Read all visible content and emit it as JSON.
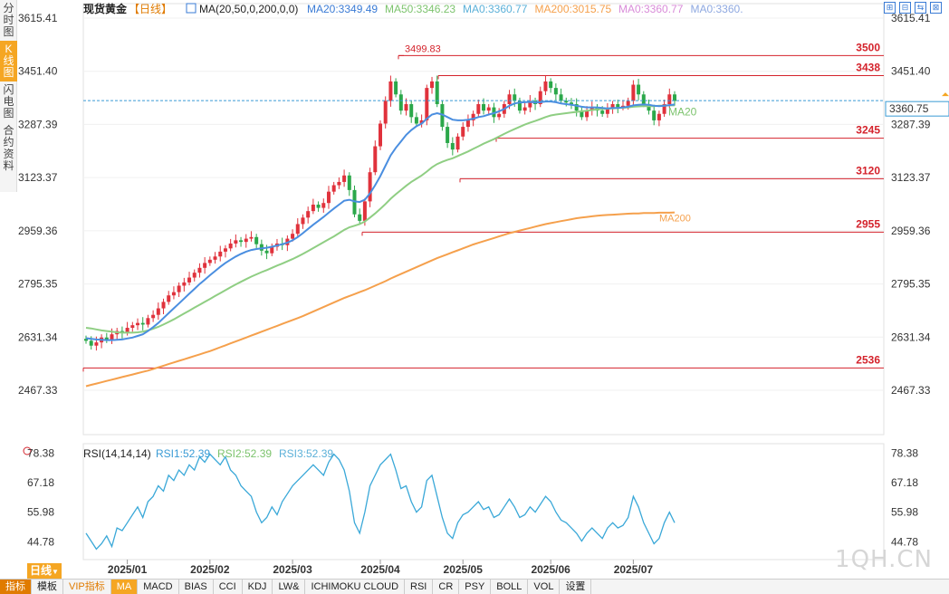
{
  "sidebar": [
    {
      "label": "分时图"
    },
    {
      "label": "K线图",
      "active": true
    },
    {
      "label": "闪电图"
    },
    {
      "label": "合约资料"
    }
  ],
  "header": {
    "title": "现货黄金",
    "period": "【日线】",
    "ma_params": "MA(20,50,0,200,0,0)",
    "ma_items": [
      {
        "text": "MA20:3349.49",
        "color": "#3a7bd5"
      },
      {
        "text": "MA50:3346.23",
        "color": "#7cc36d"
      },
      {
        "text": "MA0:3360.77",
        "color": "#5bb0d8"
      },
      {
        "text": "MA200:3015.75",
        "color": "#f5a04c"
      },
      {
        "text": "MA0:3360.77",
        "color": "#d98cd9"
      },
      {
        "text": "MA0:3360.",
        "color": "#8ea8e0"
      }
    ]
  },
  "toolbar_icons": [
    "⊞",
    "⊟",
    "⇆",
    "⊠"
  ],
  "rsi_header": {
    "params": "RSI(14,14,14)",
    "items": [
      {
        "text": "RSI1:52.39",
        "color": "#3a9bd5"
      },
      {
        "text": "RSI2:52.39",
        "color": "#7cc36d"
      },
      {
        "text": "RSI3:52.39",
        "color": "#5bb0d8"
      }
    ]
  },
  "bottom_tabs": [
    "指标",
    "模板",
    "VIP指标",
    "MA",
    "MACD",
    "BIAS",
    "CCI",
    "KDJ",
    "LW&",
    "ICHIMOKU CLOUD",
    "RSI",
    "CR",
    "PSY",
    "BOLL",
    "VOL",
    "设置"
  ],
  "period_tag": "日线",
  "watermark": "1QH.CN",
  "chart_data": {
    "type": "candlestick",
    "title": "现货黄金",
    "y_ticks": [
      "3615.41",
      "3451.40",
      "3287.39",
      "3123.37",
      "2959.36",
      "2795.35",
      "2631.34",
      "2467.33"
    ],
    "ylim": [
      2467.33,
      3615.41
    ],
    "x_ticks": [
      "2025/01",
      "2025/02",
      "2025/03",
      "2025/04",
      "2025/05",
      "2025/06",
      "2025/07"
    ],
    "last_price": "3360.75",
    "high_label": "3499.83",
    "levels": [
      {
        "label": "3500",
        "value": 3500
      },
      {
        "label": "3438",
        "value": 3438
      },
      {
        "label": "3245",
        "value": 3245
      },
      {
        "label": "3120",
        "value": 3120
      },
      {
        "label": "2955",
        "value": 2955
      },
      {
        "label": "2536",
        "value": 2536
      }
    ],
    "ma_line_labels": [
      "MA20",
      "MA200"
    ],
    "rsi_ticks": [
      "78.38",
      "67.18",
      "55.98",
      "44.78"
    ],
    "rsi_ylim": [
      38,
      82
    ],
    "closes": [
      2620,
      2605,
      2615,
      2630,
      2622,
      2640,
      2650,
      2645,
      2660,
      2668,
      2675,
      2670,
      2690,
      2700,
      2720,
      2740,
      2760,
      2770,
      2790,
      2800,
      2815,
      2830,
      2845,
      2860,
      2870,
      2880,
      2895,
      2905,
      2920,
      2930,
      2925,
      2935,
      2940,
      2918,
      2898,
      2890,
      2910,
      2920,
      2915,
      2935,
      2950,
      2980,
      3000,
      3020,
      3040,
      3030,
      3045,
      3080,
      3100,
      3110,
      3130,
      3085,
      3010,
      2990,
      3050,
      3140,
      3220,
      3290,
      3360,
      3420,
      3380,
      3330,
      3350,
      3310,
      3290,
      3300,
      3400,
      3420,
      3350,
      3280,
      3230,
      3210,
      3250,
      3280,
      3300,
      3320,
      3350,
      3330,
      3340,
      3310,
      3320,
      3350,
      3380,
      3360,
      3330,
      3340,
      3360,
      3350,
      3390,
      3420,
      3400,
      3380,
      3360,
      3355,
      3350,
      3330,
      3310,
      3330,
      3340,
      3330,
      3320,
      3335,
      3350,
      3340,
      3345,
      3360,
      3410,
      3380,
      3350,
      3330,
      3300,
      3320,
      3350,
      3380,
      3360
    ],
    "ma20": [
      2628,
      2626,
      2624,
      2623,
      2622,
      2622,
      2623,
      2624,
      2627,
      2630,
      2635,
      2640,
      2650,
      2662,
      2675,
      2690,
      2705,
      2720,
      2735,
      2750,
      2765,
      2780,
      2795,
      2808,
      2822,
      2835,
      2848,
      2860,
      2870,
      2880,
      2888,
      2895,
      2900,
      2903,
      2905,
      2907,
      2910,
      2914,
      2918,
      2923,
      2930,
      2940,
      2952,
      2965,
      2978,
      2990,
      3002,
      3015,
      3028,
      3040,
      3052,
      3055,
      3050,
      3048,
      3055,
      3075,
      3100,
      3128,
      3160,
      3192,
      3215,
      3235,
      3255,
      3270,
      3282,
      3290,
      3305,
      3318,
      3322,
      3318,
      3310,
      3302,
      3300,
      3300,
      3302,
      3305,
      3310,
      3313,
      3318,
      3322,
      3328,
      3335,
      3345,
      3352,
      3355,
      3356,
      3357,
      3355,
      3356,
      3358,
      3358,
      3356,
      3352,
      3350,
      3348,
      3345,
      3342,
      3340,
      3340,
      3340,
      3338,
      3337,
      3338,
      3338,
      3340,
      3342,
      3346,
      3348,
      3349,
      3348,
      3345,
      3344,
      3345,
      3347,
      3349
    ],
    "ma50": [
      2660,
      2658,
      2655,
      2652,
      2650,
      2648,
      2646,
      2645,
      2645,
      2645,
      2646,
      2648,
      2652,
      2657,
      2663,
      2670,
      2678,
      2686,
      2695,
      2704,
      2713,
      2722,
      2731,
      2740,
      2749,
      2758,
      2767,
      2776,
      2785,
      2794,
      2802,
      2810,
      2818,
      2825,
      2832,
      2838,
      2845,
      2852,
      2858,
      2865,
      2872,
      2880,
      2888,
      2897,
      2906,
      2915,
      2924,
      2933,
      2942,
      2952,
      2962,
      2970,
      2975,
      2980,
      2988,
      3000,
      3013,
      3027,
      3042,
      3058,
      3072,
      3085,
      3098,
      3110,
      3120,
      3130,
      3142,
      3155,
      3165,
      3172,
      3178,
      3183,
      3190,
      3197,
      3204,
      3212,
      3220,
      3228,
      3235,
      3242,
      3250,
      3258,
      3266,
      3273,
      3280,
      3287,
      3293,
      3298,
      3304,
      3310,
      3315,
      3318,
      3320,
      3322,
      3324,
      3326,
      3328,
      3330,
      3332,
      3334,
      3335,
      3336,
      3337,
      3338,
      3339,
      3340,
      3342,
      3343,
      3344,
      3344,
      3344,
      3345,
      3345,
      3346,
      3346
    ],
    "ma200": [
      2480,
      2484,
      2488,
      2492,
      2496,
      2500,
      2504,
      2508,
      2512,
      2516,
      2520,
      2524,
      2528,
      2533,
      2538,
      2543,
      2548,
      2553,
      2558,
      2563,
      2568,
      2573,
      2578,
      2583,
      2588,
      2594,
      2600,
      2606,
      2612,
      2618,
      2624,
      2630,
      2636,
      2642,
      2648,
      2654,
      2660,
      2666,
      2672,
      2678,
      2684,
      2690,
      2696,
      2703,
      2710,
      2717,
      2724,
      2731,
      2738,
      2745,
      2752,
      2758,
      2764,
      2770,
      2776,
      2783,
      2790,
      2797,
      2804,
      2812,
      2819,
      2826,
      2833,
      2840,
      2847,
      2854,
      2861,
      2868,
      2875,
      2881,
      2887,
      2893,
      2899,
      2905,
      2911,
      2917,
      2922,
      2927,
      2932,
      2937,
      2942,
      2947,
      2952,
      2956,
      2960,
      2964,
      2968,
      2972,
      2976,
      2980,
      2983,
      2986,
      2989,
      2992,
      2995,
      2998,
      3000,
      3002,
      3004,
      3006,
      3007,
      3008,
      3009,
      3010,
      3011,
      3012,
      3013,
      3013,
      3014,
      3014,
      3014,
      3015,
      3015,
      3015,
      3016
    ],
    "rsi": [
      48,
      45,
      42,
      44,
      47,
      43,
      50,
      49,
      52,
      55,
      58,
      54,
      60,
      62,
      66,
      64,
      70,
      68,
      72,
      70,
      74,
      72,
      77,
      75,
      78,
      76,
      74,
      77,
      72,
      70,
      66,
      64,
      62,
      56,
      52,
      54,
      58,
      55,
      60,
      63,
      66,
      68,
      70,
      72,
      74,
      72,
      70,
      75,
      78,
      76,
      72,
      64,
      52,
      48,
      56,
      66,
      70,
      74,
      76,
      78,
      72,
      65,
      66,
      60,
      56,
      58,
      68,
      70,
      62,
      54,
      48,
      46,
      52,
      55,
      56,
      58,
      60,
      57,
      58,
      54,
      55,
      58,
      61,
      58,
      54,
      55,
      58,
      56,
      59,
      62,
      60,
      56,
      53,
      52,
      50,
      48,
      45,
      48,
      50,
      48,
      46,
      50,
      52,
      50,
      51,
      54,
      62,
      58,
      52,
      48,
      44,
      46,
      52,
      56,
      52
    ]
  }
}
